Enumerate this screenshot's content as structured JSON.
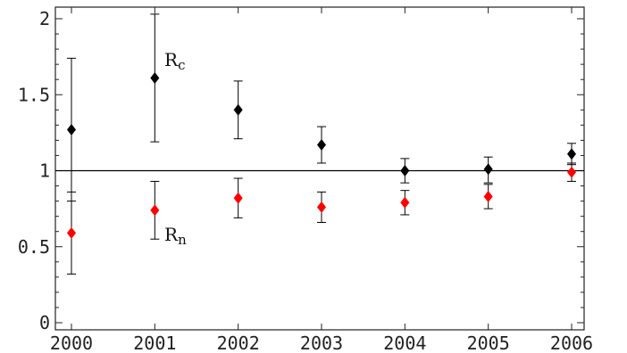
{
  "chart_data": {
    "type": "scatter",
    "x": [
      2000,
      2001,
      2002,
      2003,
      2004,
      2005,
      2006
    ],
    "xlim": [
      2000,
      2006
    ],
    "ylim": [
      0,
      2.05
    ],
    "xticks": [
      "2000",
      "2001",
      "2002",
      "2003",
      "2004",
      "2005",
      "2006"
    ],
    "yticks": [
      "0",
      "0.5",
      "1",
      "1.5",
      "2"
    ],
    "reference_line": 1,
    "series": [
      {
        "name": "Rc",
        "color": "#000000",
        "marker": "diamond",
        "values": [
          1.27,
          1.61,
          1.4,
          1.17,
          1.0,
          1.01,
          1.11
        ],
        "err_low": [
          0.8,
          1.19,
          1.21,
          1.05,
          0.92,
          0.92,
          1.04
        ],
        "err_high": [
          1.74,
          2.03,
          1.59,
          1.29,
          1.08,
          1.09,
          1.18
        ]
      },
      {
        "name": "Rn",
        "color": "#ff0000",
        "marker": "diamond",
        "values": [
          0.59,
          0.74,
          0.82,
          0.76,
          0.79,
          0.83,
          0.99
        ],
        "err_low": [
          0.32,
          0.55,
          0.69,
          0.66,
          0.71,
          0.75,
          0.93
        ],
        "err_high": [
          0.86,
          0.93,
          0.95,
          0.86,
          0.87,
          0.91,
          1.05
        ]
      }
    ],
    "annotations": [
      {
        "main": "R",
        "sub": "c"
      },
      {
        "main": "R",
        "sub": "n"
      }
    ]
  }
}
